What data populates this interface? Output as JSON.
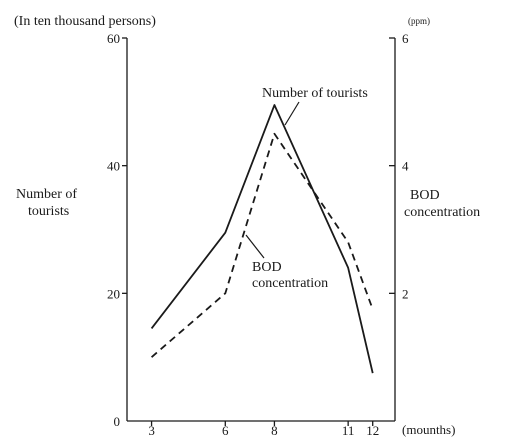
{
  "chart_data": {
    "type": "line",
    "left_axis_unit": "(In ten thousand persons)",
    "right_axis_unit": "(ppm)",
    "left_axis_label": [
      "Number of",
      "tourists"
    ],
    "right_axis_label": [
      "BOD",
      "concentration"
    ],
    "x_axis_unit": "(mounths)",
    "x": [
      3,
      6,
      8,
      11,
      12
    ],
    "x_tick_labels": [
      "3",
      "6",
      "8",
      "11",
      "12"
    ],
    "ylim_left": [
      0,
      60
    ],
    "ylim_right": [
      0,
      6
    ],
    "y_left_ticks": [
      0,
      20,
      40,
      60
    ],
    "y_left_tick_labels": [
      "0",
      "20",
      "40",
      "60"
    ],
    "y_right_ticks": [
      2,
      4,
      6
    ],
    "y_right_tick_labels": [
      "2",
      "4",
      "6"
    ],
    "grid": false,
    "series": [
      {
        "name": "Number of tourists",
        "axis": "left",
        "style": "solid",
        "values": [
          14.5,
          29.5,
          49.5,
          24,
          7.5
        ]
      },
      {
        "name_lines": [
          "BOD",
          "concentration"
        ],
        "axis": "right",
        "style": "dashed",
        "values": [
          1.0,
          2.0,
          4.5,
          2.8,
          1.75
        ]
      }
    ],
    "annotations": {
      "tourists_label": "Number of tourists",
      "bod_label": [
        "BOD",
        "concentration"
      ]
    }
  }
}
